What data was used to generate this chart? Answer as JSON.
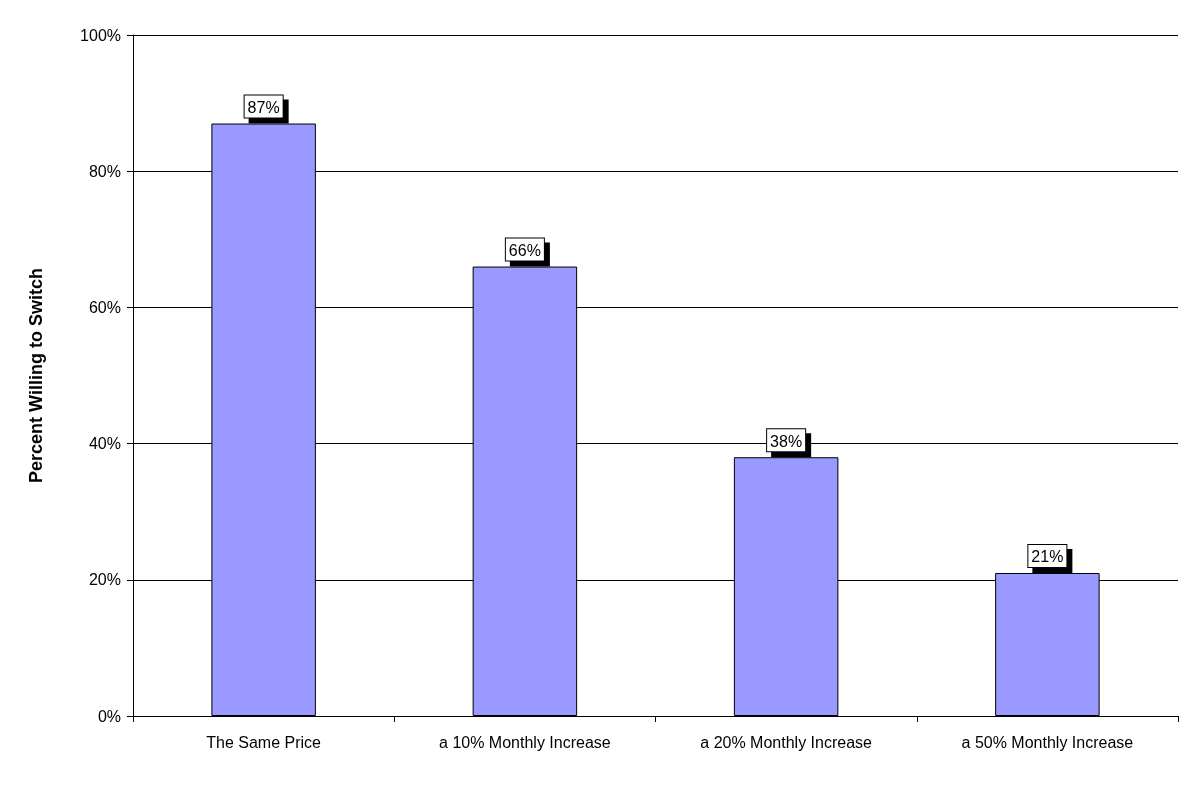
{
  "chart_data": {
    "type": "bar",
    "ylabel": "Percent Willing to Switch",
    "categories": [
      "The Same Price",
      "a 10% Monthly Increase",
      "a 20% Monthly Increase",
      "a 50% Monthly Increase"
    ],
    "values": [
      87,
      66,
      38,
      21
    ],
    "value_labels": [
      "87%",
      "66%",
      "38%",
      "21%"
    ],
    "color": "#9999ff",
    "ylim": [
      0,
      100
    ],
    "yticks": [
      {
        "value": 0,
        "label": "0%"
      },
      {
        "value": 20,
        "label": "20%"
      },
      {
        "value": 40,
        "label": "40%"
      },
      {
        "value": 60,
        "label": "60%"
      },
      {
        "value": 80,
        "label": "80%"
      },
      {
        "value": 100,
        "label": "100%"
      }
    ],
    "grid": "y"
  }
}
